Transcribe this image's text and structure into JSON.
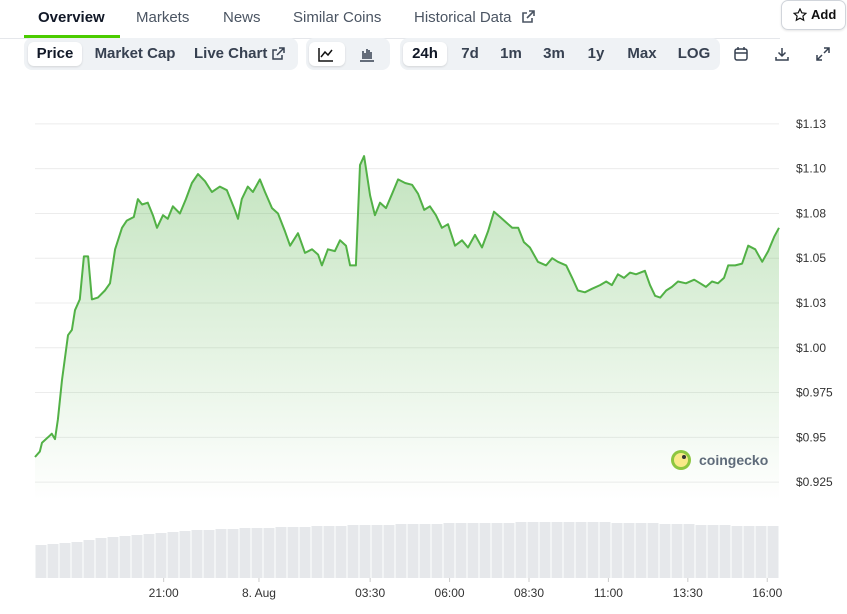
{
  "tabs": [
    "Overview",
    "Markets",
    "News",
    "Similar Coins",
    "Historical Data"
  ],
  "add_button": "Add",
  "chart_tabs": [
    "Price",
    "Market Cap",
    "Live Chart"
  ],
  "ranges": [
    "24h",
    "7d",
    "1m",
    "3m",
    "1y",
    "Max",
    "LOG"
  ],
  "watermark": "coingecko",
  "chart_data": {
    "type": "area",
    "x": [
      -7.05,
      -6.9,
      -6.83,
      -6.64,
      -6.52,
      -6.42,
      -6.33,
      -6.2,
      -6.01,
      -5.89,
      -5.79,
      -5.64,
      -5.51,
      -5.38,
      -5.26,
      -5.07,
      -4.85,
      -4.69,
      -4.53,
      -4.31,
      -4.16,
      -3.94,
      -3.81,
      -3.68,
      -3.5,
      -3.34,
      -3.21,
      -3.02,
      -2.87,
      -2.71,
      -2.49,
      -2.3,
      -2.11,
      -1.92,
      -1.7,
      -1.48,
      -1.23,
      -1.01,
      -0.76,
      -0.66,
      -0.54,
      -0.35,
      -0.19,
      0.03,
      0.19,
      0.41,
      0.6,
      0.82,
      0.98,
      1.23,
      1.45,
      1.67,
      1.86,
      1.98,
      2.17,
      2.39,
      2.55,
      2.74,
      2.87,
      3.05,
      3.18,
      3.31,
      3.5,
      3.65,
      3.81,
      4.0,
      4.19,
      4.38,
      4.6,
      4.82,
      5.01,
      5.2,
      5.38,
      5.57,
      5.76,
      5.95,
      6.17,
      6.39,
      6.58,
      6.8,
      7.02,
      7.21,
      7.4,
      7.59,
      7.78,
      7.97,
      8.16,
      8.34,
      8.53,
      8.78,
      9.04,
      9.23,
      9.41,
      9.67,
      9.86,
      10.04,
      10.26,
      10.49,
      10.74,
      10.93,
      11.11,
      11.3,
      11.49,
      11.68,
      11.87,
      12.15,
      12.31,
      12.47,
      12.63,
      12.82,
      13.0,
      13.19,
      13.44,
      13.7,
      13.89,
      14.07,
      14.26,
      14.45,
      14.64,
      14.77,
      14.99,
      15.21,
      15.4,
      15.62,
      15.84,
      16.03,
      16.22,
      16.37
    ],
    "series": [
      {
        "color": "#52b146",
        "values": [
          0.939,
          0.942,
          0.947,
          0.95,
          0.952,
          0.949,
          0.96,
          0.982,
          1.007,
          1.01,
          1.021,
          1.027,
          1.051,
          1.051,
          1.027,
          1.028,
          1.032,
          1.036,
          1.055,
          1.067,
          1.071,
          1.073,
          1.083,
          1.08,
          1.081,
          1.074,
          1.067,
          1.074,
          1.072,
          1.079,
          1.075,
          1.083,
          1.092,
          1.097,
          1.093,
          1.087,
          1.09,
          1.088,
          1.077,
          1.072,
          1.083,
          1.09,
          1.087,
          1.094,
          1.087,
          1.078,
          1.075,
          1.065,
          1.057,
          1.064,
          1.053,
          1.055,
          1.052,
          1.046,
          1.055,
          1.054,
          1.06,
          1.057,
          1.046,
          1.046,
          1.102,
          1.107,
          1.085,
          1.074,
          1.081,
          1.078,
          1.086,
          1.094,
          1.092,
          1.091,
          1.086,
          1.077,
          1.079,
          1.074,
          1.067,
          1.069,
          1.057,
          1.06,
          1.056,
          1.063,
          1.056,
          1.065,
          1.076,
          1.073,
          1.07,
          1.067,
          1.067,
          1.059,
          1.056,
          1.048,
          1.046,
          1.05,
          1.048,
          1.046,
          1.039,
          1.032,
          1.031,
          1.033,
          1.035,
          1.037,
          1.035,
          1.041,
          1.039,
          1.042,
          1.041,
          1.043,
          1.035,
          1.029,
          1.028,
          1.032,
          1.034,
          1.037,
          1.036,
          1.038,
          1.036,
          1.034,
          1.037,
          1.036,
          1.039,
          1.046,
          1.046,
          1.047,
          1.057,
          1.055,
          1.048,
          1.054,
          1.062,
          1.067
        ]
      }
    ],
    "xlim": [
      -7.05,
      16.37
    ],
    "xticks": [
      {
        "value": -3,
        "label": "21:00"
      },
      {
        "value": 0,
        "label": "8. Aug"
      },
      {
        "value": 3.5,
        "label": "03:30"
      },
      {
        "value": 6,
        "label": "06:00"
      },
      {
        "value": 8.5,
        "label": "08:30"
      },
      {
        "value": 11,
        "label": "11:00"
      },
      {
        "value": 13.5,
        "label": "13:30"
      },
      {
        "value": 16,
        "label": "16:00"
      }
    ],
    "ylim": [
      0.915,
      1.135
    ],
    "yticks": [
      {
        "value": 1.125,
        "label": "$1.13"
      },
      {
        "value": 1.1,
        "label": "$1.10"
      },
      {
        "value": 1.075,
        "label": "$1.08"
      },
      {
        "value": 1.05,
        "label": "$1.05"
      },
      {
        "value": 1.025,
        "label": "$1.03"
      },
      {
        "value": 1.0,
        "label": "$1.00"
      },
      {
        "value": 0.975,
        "label": "$0.975"
      },
      {
        "value": 0.95,
        "label": "$0.95"
      },
      {
        "value": 0.925,
        "label": "$0.925"
      }
    ],
    "grid": true,
    "volume": {
      "color": "#e6e8eb",
      "lim": [
        0,
        60
      ],
      "values": [
        33,
        34,
        35,
        36,
        38,
        40,
        41,
        42,
        43,
        44,
        45,
        46,
        47,
        48,
        48,
        49,
        49,
        50,
        50,
        50,
        51,
        51,
        51,
        52,
        52,
        52,
        53,
        53,
        53,
        53,
        54,
        54,
        54,
        54,
        55,
        55,
        55,
        55,
        55,
        55,
        56,
        56,
        56,
        56,
        56,
        56,
        56,
        56,
        55,
        55,
        55,
        55,
        54,
        54,
        54,
        53,
        53,
        53,
        52,
        52,
        52,
        52
      ]
    }
  }
}
